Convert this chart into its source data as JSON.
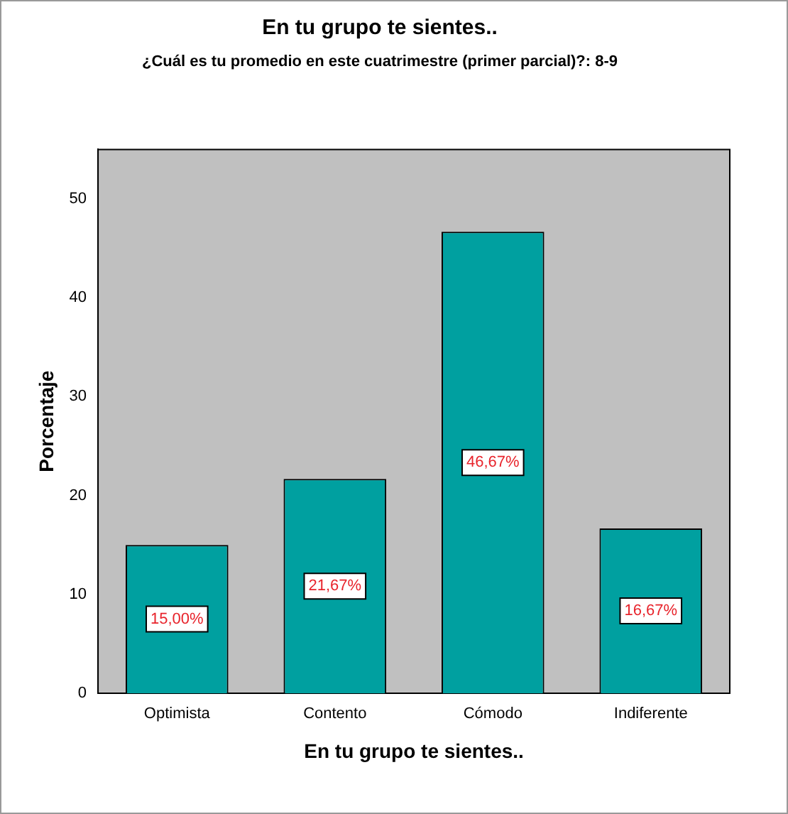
{
  "chart_data": {
    "type": "bar",
    "title": "En tu grupo te sientes..",
    "subtitle": "¿Cuál es tu promedio en este cuatrimestre (primer parcial)?: 8-9",
    "xlabel": "En tu grupo te sientes..",
    "ylabel": "Porcentaje",
    "categories": [
      "Optimista",
      "Contento",
      "Cómodo",
      "Indiferente"
    ],
    "values": [
      15.0,
      21.67,
      46.67,
      16.67
    ],
    "value_labels": [
      "15,00%",
      "21,67%",
      "46,67%",
      "16,67%"
    ],
    "color": "#00a0a0",
    "ylim": [
      0,
      55
    ],
    "yticks": [
      0,
      10,
      20,
      30,
      40,
      50
    ],
    "grid": false,
    "legend": false
  }
}
